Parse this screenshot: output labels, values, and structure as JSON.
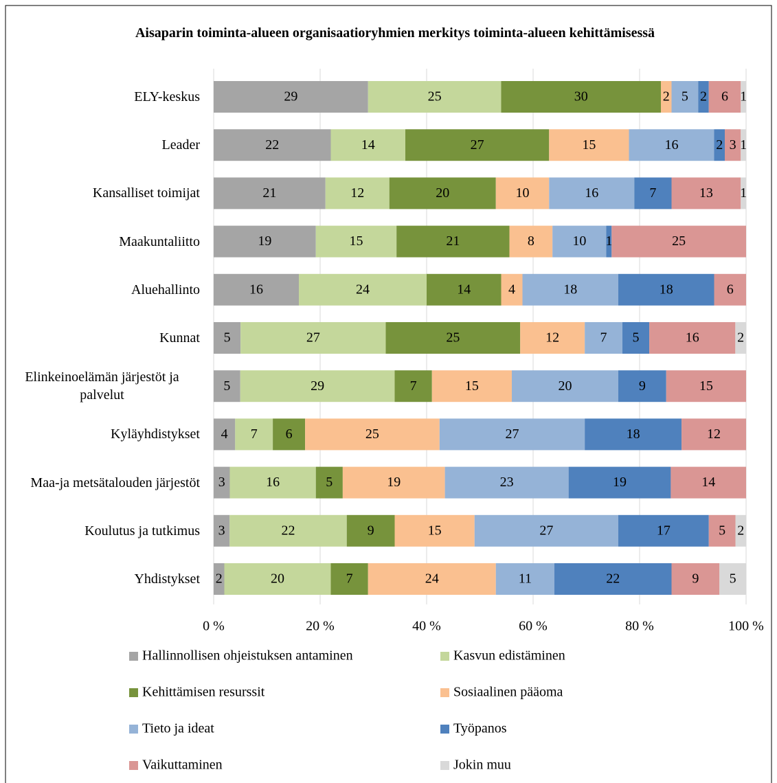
{
  "chart_data": {
    "type": "bar",
    "orientation": "horizontal",
    "stacking": "percent",
    "title": "Aisaparin toiminta-alueen organisaatioryhmien merkitys toiminta-alueen kehittämisessä",
    "categories": [
      "ELY-keskus",
      "Leader",
      "Kansalliset toimijat",
      "Maakuntaliitto",
      "Aluehallinto",
      "Kunnat",
      "Elinkeinoelämän järjestöt ja palvelut",
      "Kyläyhdistykset",
      "Maa-ja metsätalouden järjestöt",
      "Koulutus ja tutkimus",
      "Yhdistykset"
    ],
    "series": [
      {
        "name": "Hallinnollisen ohjeistuksen antaminen",
        "color": "#a5a5a5",
        "values": [
          29,
          22,
          21,
          19,
          16,
          5,
          5,
          4,
          3,
          3,
          2
        ]
      },
      {
        "name": "Kasvun edistäminen",
        "color": "#c4d79b",
        "values": [
          25,
          14,
          12,
          15,
          24,
          27,
          29,
          7,
          16,
          22,
          20
        ]
      },
      {
        "name": "Kehittämisen resurssit",
        "color": "#77933c",
        "values": [
          30,
          27,
          20,
          21,
          14,
          25,
          7,
          6,
          5,
          9,
          7
        ]
      },
      {
        "name": "Sosiaalinen pääoma",
        "color": "#fac090",
        "values": [
          2,
          15,
          10,
          8,
          4,
          12,
          15,
          25,
          19,
          15,
          24
        ]
      },
      {
        "name": "Tieto ja ideat",
        "color": "#95b3d7",
        "values": [
          5,
          16,
          16,
          10,
          18,
          7,
          20,
          27,
          23,
          27,
          11
        ]
      },
      {
        "name": "Työpanos",
        "color": "#4f81bd",
        "values": [
          2,
          2,
          7,
          1,
          18,
          5,
          9,
          18,
          19,
          17,
          22
        ]
      },
      {
        "name": "Vaikuttaminen",
        "color": "#da9694",
        "values": [
          6,
          3,
          13,
          25,
          6,
          16,
          15,
          12,
          14,
          5,
          9
        ]
      },
      {
        "name": "Jokin muu",
        "color": "#d9d9d9",
        "values": [
          1,
          1,
          1,
          0,
          0,
          2,
          0,
          0,
          0,
          2,
          5
        ]
      }
    ],
    "xlim": [
      0,
      100
    ],
    "xticks": [
      {
        "value": 0,
        "label": "0 %"
      },
      {
        "value": 20,
        "label": "20 %"
      },
      {
        "value": 40,
        "label": "40 %"
      },
      {
        "value": 60,
        "label": "60 %"
      },
      {
        "value": 80,
        "label": "80 %"
      },
      {
        "value": 100,
        "label": "100 %"
      }
    ],
    "grid": true,
    "legend": "bottom"
  }
}
